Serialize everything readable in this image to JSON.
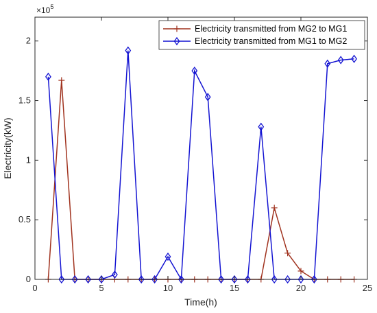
{
  "chart_data": {
    "type": "line",
    "xlabel": "Time(h)",
    "ylabel": "Electricity(kW)",
    "y_exponent_label": "×10",
    "y_exponent_power": "5",
    "xlim": [
      0,
      25
    ],
    "ylim": [
      0,
      220000
    ],
    "x_ticks": [
      0,
      5,
      10,
      15,
      20,
      25
    ],
    "y_ticks": [
      0,
      50000,
      100000,
      150000,
      200000
    ],
    "y_tick_labels": [
      "0",
      "0.5",
      "1",
      "1.5",
      "2"
    ],
    "grid": false,
    "legend_position": "top-right",
    "x": [
      1,
      2,
      3,
      4,
      5,
      6,
      7,
      8,
      9,
      10,
      11,
      12,
      13,
      14,
      15,
      16,
      17,
      18,
      19,
      20,
      21,
      22,
      23,
      24
    ],
    "series": [
      {
        "name": "Electricity transmitted from MG2 to MG1",
        "color": "#a0321e",
        "marker": "plus",
        "values": [
          0,
          167000,
          0,
          0,
          0,
          0,
          0,
          0,
          0,
          0,
          0,
          0,
          0,
          0,
          0,
          0,
          0,
          60000,
          22000,
          7000,
          0,
          0,
          0,
          0
        ]
      },
      {
        "name": "Electricity transmitted from MG1 to MG2",
        "color": "#1414d2",
        "marker": "diamond",
        "values": [
          170000,
          0,
          0,
          0,
          0,
          4000,
          192000,
          0,
          0,
          19000,
          0,
          175000,
          153000,
          0,
          0,
          0,
          128000,
          0,
          0,
          0,
          0,
          181000,
          184000,
          185000
        ]
      }
    ]
  }
}
